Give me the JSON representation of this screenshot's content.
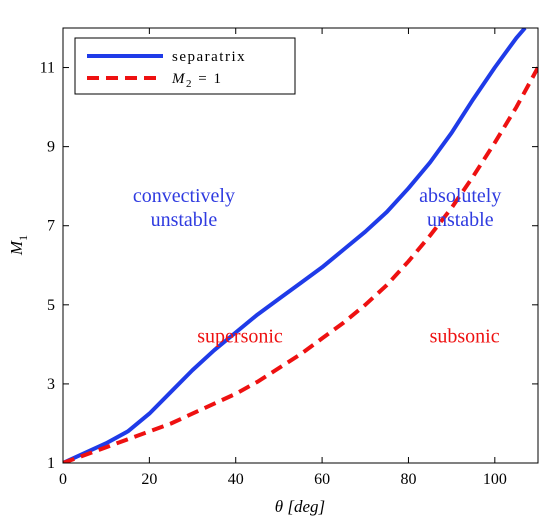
{
  "chart_data": {
    "type": "line",
    "xlabel": "θ [deg]",
    "ylabel": "M",
    "ylabel_subscript": "1",
    "xlim": [
      0,
      110
    ],
    "ylim": [
      1,
      12
    ],
    "xticks": [
      "0",
      "20",
      "40",
      "60",
      "80",
      "100"
    ],
    "yticks": [
      "1",
      "3",
      "5",
      "7",
      "9",
      "11"
    ],
    "grid": false,
    "legend_position": "top-left",
    "series": [
      {
        "name": "separatrix",
        "color": "#1f3be8",
        "style": "solid",
        "x": [
          0,
          5,
          10,
          15,
          20,
          25,
          30,
          35,
          40,
          45,
          50,
          55,
          60,
          65,
          70,
          75,
          80,
          85,
          90,
          95,
          100,
          105,
          107
        ],
        "y": [
          1.0,
          1.25,
          1.5,
          1.8,
          2.25,
          2.8,
          3.35,
          3.85,
          4.3,
          4.75,
          5.15,
          5.55,
          5.95,
          6.4,
          6.85,
          7.35,
          7.95,
          8.6,
          9.35,
          10.2,
          11.0,
          11.75,
          12.0
        ]
      },
      {
        "name": "M_2 = 1",
        "legend_label": {
          "base": "M",
          "sub": "2",
          "rest": " = 1"
        },
        "color": "#ee1111",
        "style": "dashed",
        "x": [
          0,
          5,
          10,
          15,
          20,
          25,
          30,
          35,
          40,
          45,
          50,
          55,
          60,
          65,
          70,
          75,
          80,
          85,
          90,
          95,
          100,
          105,
          110
        ],
        "y": [
          1.0,
          1.2,
          1.4,
          1.6,
          1.8,
          2.0,
          2.25,
          2.5,
          2.75,
          3.05,
          3.4,
          3.75,
          4.15,
          4.55,
          5.0,
          5.5,
          6.1,
          6.75,
          7.45,
          8.25,
          9.1,
          10.0,
          11.0
        ]
      }
    ],
    "annotations": [
      {
        "lines": [
          "convectively",
          "unstable"
        ],
        "color": "#2f3be0",
        "x": 28,
        "y": 7.6
      },
      {
        "lines": [
          "absolutely",
          "unstable"
        ],
        "color": "#2f3be0",
        "x": 92,
        "y": 7.6
      },
      {
        "lines": [
          "supersonic"
        ],
        "color": "#ee1111",
        "x": 41,
        "y": 4.05
      },
      {
        "lines": [
          "subsonic"
        ],
        "color": "#ee1111",
        "x": 93,
        "y": 4.05
      }
    ]
  }
}
